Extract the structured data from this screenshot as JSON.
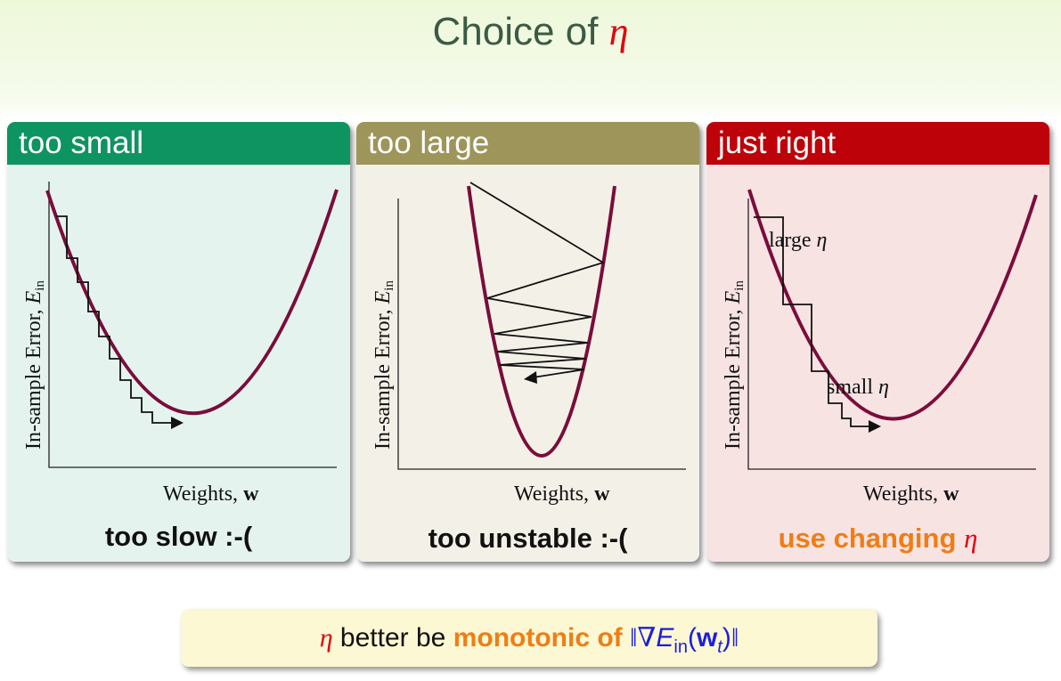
{
  "title": {
    "text": "Choice of ",
    "symbol": "η"
  },
  "panels": [
    {
      "header": "too small",
      "ylabel_text": "In-sample Error, ",
      "ylabel_symbol": "E",
      "ylabel_sub": "in",
      "xlabel_text": "Weights, ",
      "xlabel_symbol": "w",
      "caption": "too slow :-("
    },
    {
      "header": "too large",
      "ylabel_text": "In-sample Error, ",
      "ylabel_symbol": "E",
      "ylabel_sub": "in",
      "xlabel_text": "Weights, ",
      "xlabel_symbol": "w",
      "caption": "too unstable :-("
    },
    {
      "header": "just right",
      "ylabel_text": "In-sample Error, ",
      "ylabel_symbol": "E",
      "ylabel_sub": "in",
      "xlabel_text": "Weights, ",
      "xlabel_symbol": "w",
      "label_large": "large ",
      "label_small": "small ",
      "label_symbol": "η",
      "caption_text": "use changing ",
      "caption_symbol": "η"
    }
  ],
  "bottom": {
    "symbol": "η",
    "text1": " better be ",
    "highlight": "monotonic of ",
    "norm_open": "‖∇",
    "E": "E",
    "sub_in": "in",
    "paren_open": "(",
    "w": "w",
    "sub_t": "t",
    "paren_close": ")",
    "norm_close": "‖"
  },
  "colors": {
    "title": "#3c5a46",
    "eta": "#e3000b",
    "too_small_header": "#0e9461",
    "too_large_header": "#9e955a",
    "just_right_header": "#bd0309",
    "curve": "#7a0d3c",
    "orange": "#f07d14",
    "blue": "#1a1ee0"
  }
}
